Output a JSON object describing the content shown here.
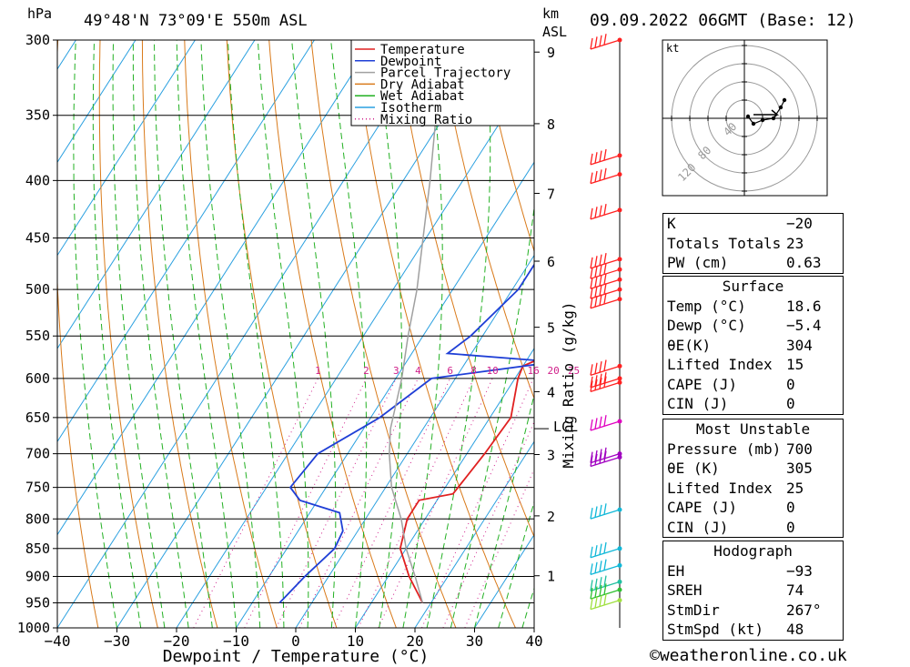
{
  "header": {
    "pressure_unit": "hPa",
    "location": "49°48'N  73°09'E  550m  ASL",
    "height_unit_1": "km",
    "height_unit_2": "ASL",
    "datetime": "09.09.2022  06GMT  (Base: 12)"
  },
  "footer": {
    "credit": "©weatheronline.co.uk"
  },
  "colors": {
    "temperature": "#e02020",
    "dewpoint": "#1f3fd6",
    "parcel": "#a0a0a0",
    "dry_adiabat": "#d97a1a",
    "wet_adiabat": "#22b022",
    "isotherm": "#2aa0e0",
    "mixing_ratio": "#d0208a"
  },
  "chart_data": {
    "type": "line",
    "subtype": "skew-T log-P diagram",
    "xlabel": "Dewpoint / Temperature (°C)",
    "ylabel": "hPa",
    "x_ticks": [
      -40,
      -30,
      -20,
      -10,
      0,
      10,
      20,
      30,
      40
    ],
    "xlim": [
      -40,
      40
    ],
    "y_ticks": [
      300,
      350,
      400,
      450,
      500,
      550,
      600,
      650,
      700,
      750,
      800,
      850,
      900,
      950,
      1000
    ],
    "ylim": [
      1000,
      300
    ],
    "y_scale": "log",
    "height_ticks_km": [
      1,
      2,
      3,
      4,
      5,
      6,
      7,
      8,
      9
    ],
    "lcl_label": "LCL",
    "lcl_pressure": 665,
    "mixing_ratio_axis_label": "Mixing Ratio (g/kg)",
    "mixing_ratio_values": [
      "1",
      "2",
      "3",
      "4",
      "6",
      "8",
      "10",
      "16",
      "20",
      "25"
    ],
    "legend": {
      "position": "top-right",
      "entries": [
        "Temperature",
        "Dewpoint",
        "Parcel Trajectory",
        "Dry Adiabat",
        "Wet Adiabat",
        "Isotherm",
        "Mixing Ratio"
      ]
    },
    "series": [
      {
        "name": "Temperature",
        "points": [
          [
            950,
            18.6
          ],
          [
            900,
            13.5
          ],
          [
            850,
            9.0
          ],
          [
            800,
            7.0
          ],
          [
            770,
            7.0
          ],
          [
            760,
            12.0
          ],
          [
            700,
            13.0
          ],
          [
            650,
            13.5
          ],
          [
            600,
            10.5
          ],
          [
            585,
            10.0
          ],
          [
            570,
            13.5
          ],
          [
            550,
            12.5
          ],
          [
            500,
            10.0
          ],
          [
            450,
            6.5
          ],
          [
            400,
            2.5
          ],
          [
            350,
            -4.0
          ],
          [
            300,
            -12.0
          ]
        ]
      },
      {
        "name": "Dewpoint",
        "points": [
          [
            950,
            -5.4
          ],
          [
            900,
            -4.0
          ],
          [
            850,
            -2.0
          ],
          [
            820,
            -2.5
          ],
          [
            790,
            -5.0
          ],
          [
            770,
            -13.0
          ],
          [
            750,
            -16.0
          ],
          [
            700,
            -15.0
          ],
          [
            650,
            -8.5
          ],
          [
            600,
            -4.0
          ],
          [
            580,
            15.0
          ],
          [
            570,
            -4.0
          ],
          [
            550,
            -2.0
          ],
          [
            500,
            1.0
          ],
          [
            450,
            1.0
          ],
          [
            410,
            4.0
          ],
          [
            395,
            -0.5
          ],
          [
            375,
            -0.5
          ],
          [
            340,
            -10.0
          ],
          [
            315,
            -21.5
          ],
          [
            300,
            -22.5
          ]
        ]
      },
      {
        "name": "Parcel Trajectory",
        "points": [
          [
            950,
            18.6
          ],
          [
            900,
            14.5
          ],
          [
            850,
            10.0
          ],
          [
            800,
            6.0
          ],
          [
            750,
            1.0
          ],
          [
            700,
            -3.0
          ],
          [
            665,
            -5.5
          ],
          [
            600,
            -9.0
          ],
          [
            550,
            -12.5
          ],
          [
            500,
            -16.0
          ],
          [
            450,
            -20.5
          ],
          [
            400,
            -25.5
          ],
          [
            350,
            -31.5
          ],
          [
            300,
            -38.5
          ]
        ]
      }
    ],
    "wind_barbs": [
      {
        "pressure": 300,
        "color": "red"
      },
      {
        "pressure": 380,
        "color": "red"
      },
      {
        "pressure": 395,
        "color": "red"
      },
      {
        "pressure": 425,
        "color": "red"
      },
      {
        "pressure": 470,
        "color": "red"
      },
      {
        "pressure": 480,
        "color": "red"
      },
      {
        "pressure": 490,
        "color": "red"
      },
      {
        "pressure": 500,
        "color": "red"
      },
      {
        "pressure": 510,
        "color": "red"
      },
      {
        "pressure": 585,
        "color": "red"
      },
      {
        "pressure": 600,
        "color": "red"
      },
      {
        "pressure": 605,
        "color": "red"
      },
      {
        "pressure": 655,
        "color": "magenta"
      },
      {
        "pressure": 700,
        "color": "purple"
      },
      {
        "pressure": 705,
        "color": "purple"
      },
      {
        "pressure": 785,
        "color": "cyan"
      },
      {
        "pressure": 850,
        "color": "cyan"
      },
      {
        "pressure": 880,
        "color": "cyan"
      },
      {
        "pressure": 910,
        "color": "teal"
      },
      {
        "pressure": 925,
        "color": "green"
      },
      {
        "pressure": 945,
        "color": "yellowgreen"
      }
    ],
    "hodograph": {
      "unit_label": "kt",
      "ring_labels": [
        "40",
        "80",
        "120"
      ],
      "points_kt": [
        [
          2,
          1
        ],
        [
          5,
          -3
        ],
        [
          10,
          -1
        ],
        [
          16,
          0
        ],
        [
          20,
          6
        ],
        [
          22,
          10
        ]
      ]
    }
  },
  "indices": {
    "general": [
      {
        "label": "K",
        "value": "−20"
      },
      {
        "label": "Totals Totals",
        "value": "23"
      },
      {
        "label": "PW (cm)",
        "value": "0.63"
      }
    ],
    "surface": {
      "title": "Surface",
      "rows": [
        {
          "label": "Temp (°C)",
          "value": "18.6"
        },
        {
          "label": "Dewp (°C)",
          "value": "−5.4"
        },
        {
          "label": "θE(K)",
          "value": "304"
        },
        {
          "label": "Lifted Index",
          "value": "15"
        },
        {
          "label": "CAPE (J)",
          "value": "0"
        },
        {
          "label": "CIN (J)",
          "value": "0"
        }
      ]
    },
    "most_unstable": {
      "title": "Most Unstable",
      "rows": [
        {
          "label": "Pressure (mb)",
          "value": "700"
        },
        {
          "label": "θE (K)",
          "value": "305"
        },
        {
          "label": "Lifted Index",
          "value": "25"
        },
        {
          "label": "CAPE (J)",
          "value": "0"
        },
        {
          "label": "CIN (J)",
          "value": "0"
        }
      ]
    },
    "hodograph": {
      "title": "Hodograph",
      "rows": [
        {
          "label": "EH",
          "value": "−93"
        },
        {
          "label": "SREH",
          "value": "74"
        },
        {
          "label": "StmDir",
          "value": "267°"
        },
        {
          "label": "StmSpd (kt)",
          "value": "48"
        }
      ]
    }
  }
}
